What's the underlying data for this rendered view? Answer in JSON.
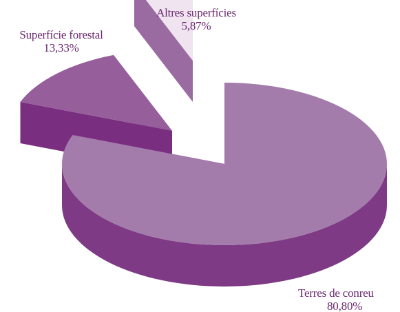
{
  "chart_data": {
    "type": "pie",
    "style": "3d-exploded",
    "title": "",
    "slices": [
      {
        "label": "Terres de conreu",
        "value_text": "80,80%",
        "value": 80.8,
        "color": "#a47cac",
        "side_color": "#7e3a84"
      },
      {
        "label": "Superfície forestal",
        "value_text": "13,33%",
        "value": 13.33,
        "color": "#965f9c",
        "side_color": "#7a2e80"
      },
      {
        "label": "Altres superfícies",
        "value_text": "5,87%",
        "value": 5.87,
        "color": "#efe4f0",
        "side_color": "#9a6ba0"
      }
    ],
    "label_color": "#6a2870"
  }
}
